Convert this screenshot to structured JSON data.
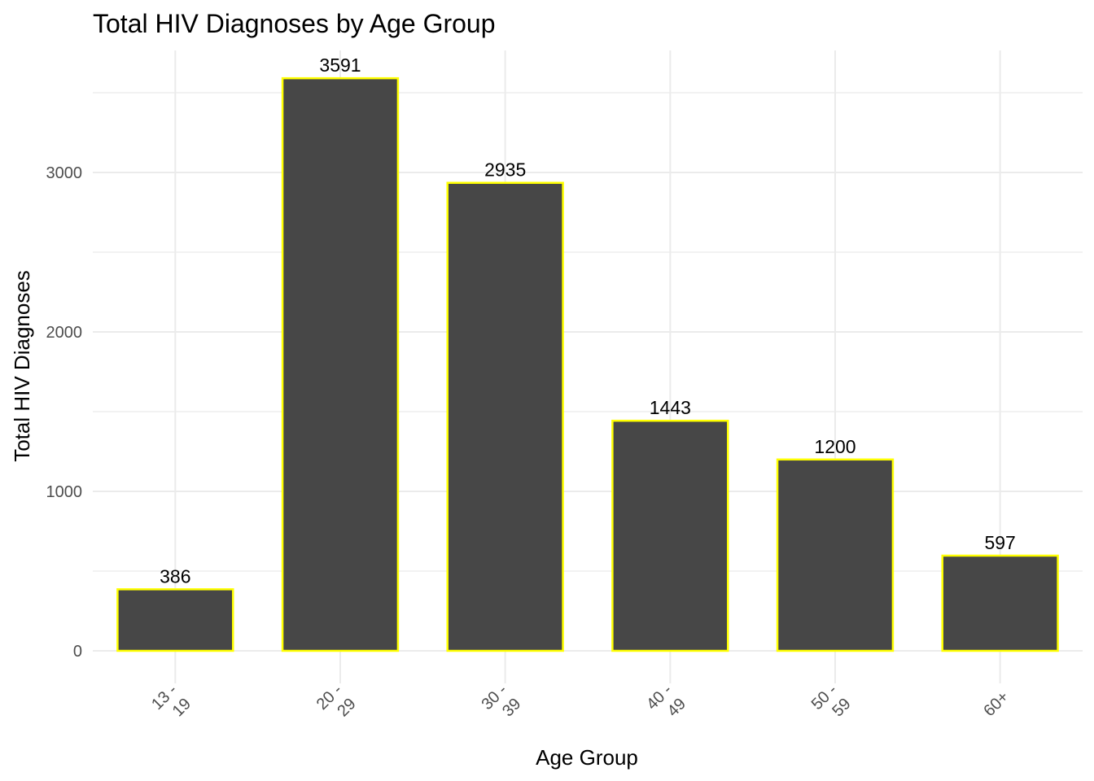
{
  "chart_data": {
    "type": "bar",
    "title": "Total HIV Diagnoses by Age Group",
    "xlabel": "Age Group",
    "ylabel": "Total HIV Diagnoses",
    "categories": [
      "13 - 19",
      "20 - 29",
      "30 - 39",
      "40 - 49",
      "50 - 59",
      "60+"
    ],
    "values": [
      386,
      3591,
      2935,
      1443,
      1200,
      597
    ],
    "data_labels": [
      "386",
      "3591",
      "2935",
      "1443",
      "1200",
      "597"
    ],
    "y_ticks": [
      0,
      1000,
      2000,
      3000
    ],
    "y_tick_labels": [
      "0",
      "1000",
      "2000",
      "3000"
    ],
    "ylim": [
      0,
      3770
    ],
    "grid": true,
    "legend": "none",
    "colors": {
      "bar_fill": "#474747",
      "bar_outline": "#ffff00",
      "grid": "#ebebeb"
    }
  }
}
